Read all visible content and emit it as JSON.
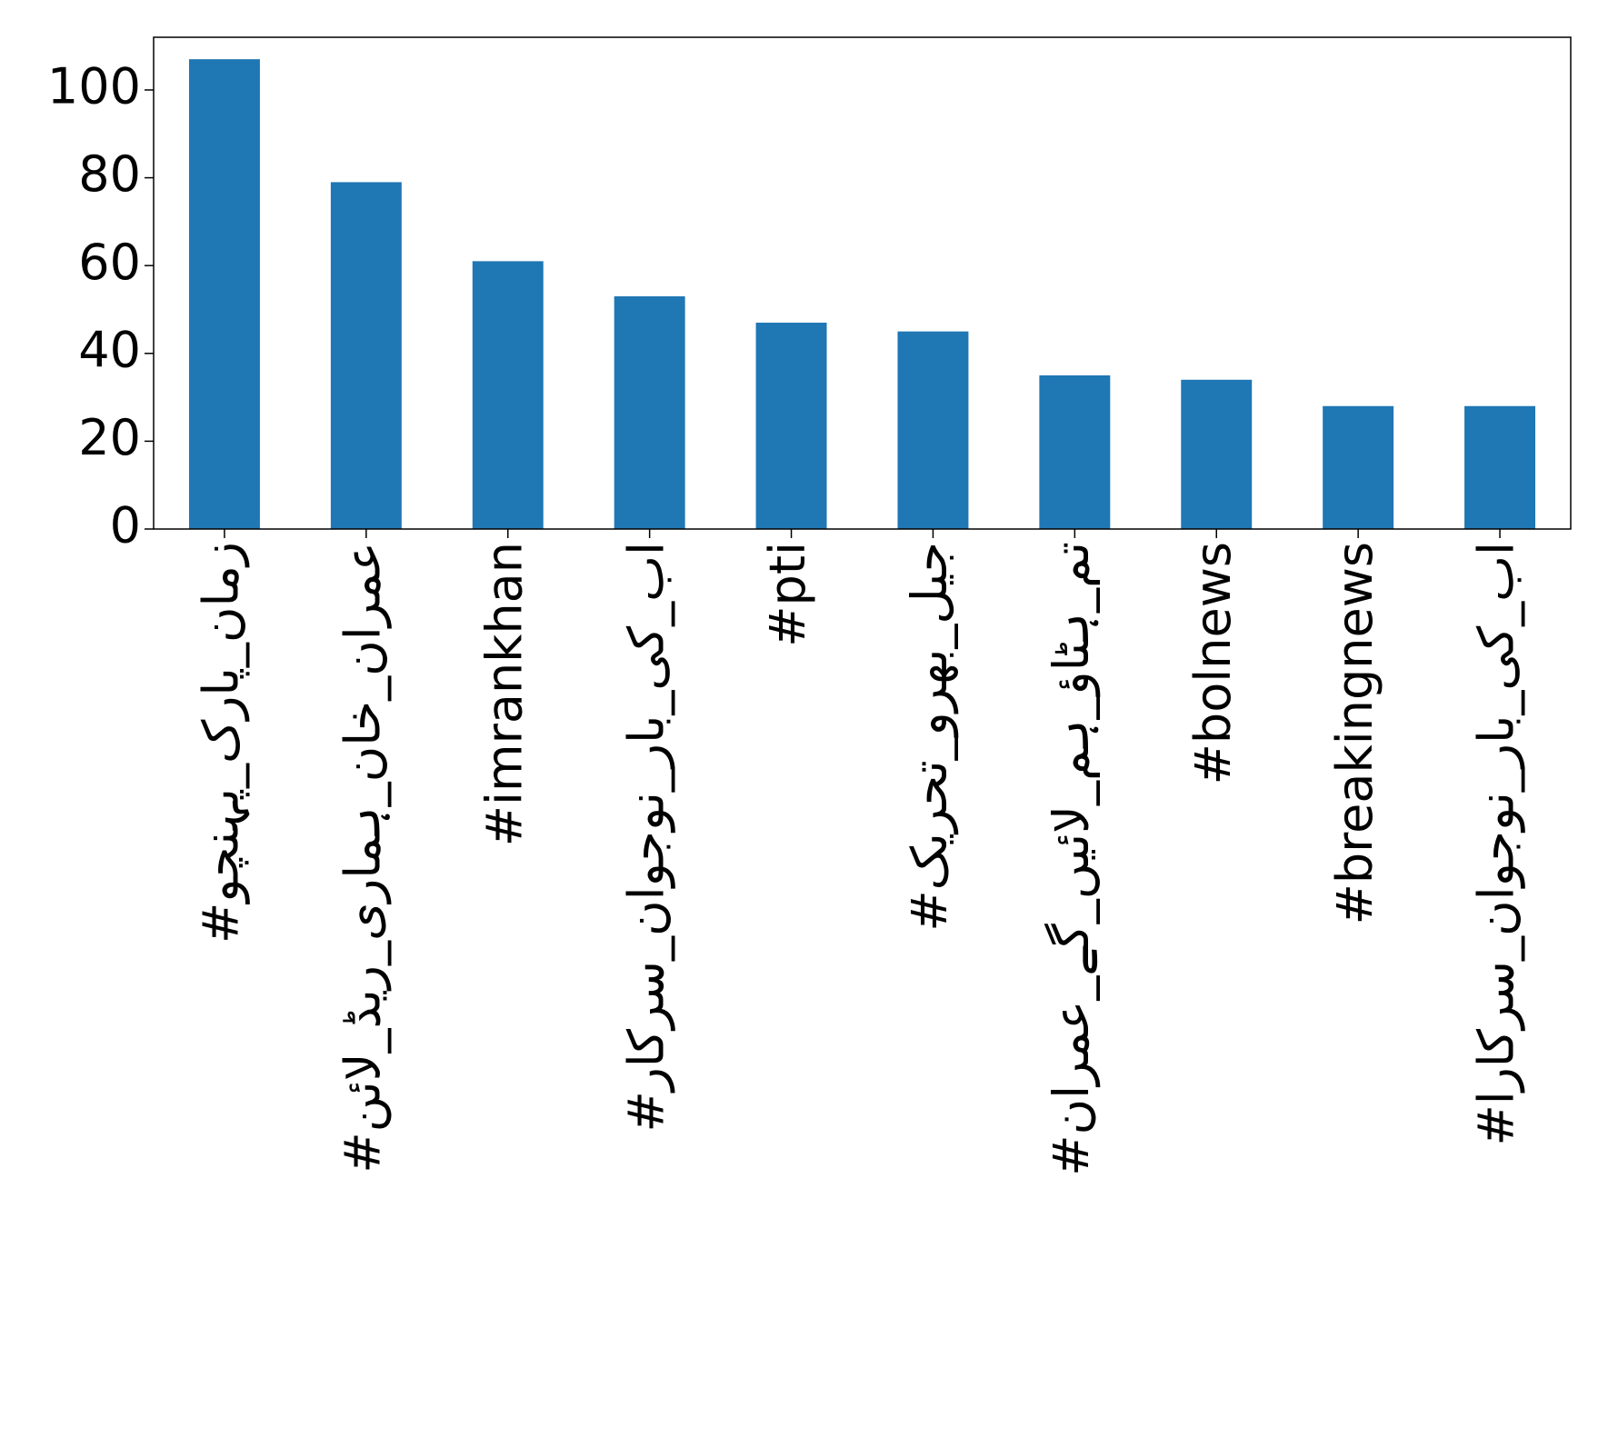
{
  "chart_data": {
    "type": "bar",
    "categories": [
      "#زمان_پارک_پہنچو",
      "#عمران_خان_ہماری_ریڈ_لائن",
      "#imrankhan",
      "#اب_کی_بار_نوجوان_سرکار",
      "#pti",
      "#جیل_بھرو_تحریک",
      "#تم_ہٹاؤ_ہم_لائیں_گے_عمران",
      "#bolnews",
      "#breakingnews",
      "#اب_کی_بار_نوجوان_سرکارا"
    ],
    "values": [
      107,
      79,
      61,
      53,
      47,
      45,
      35,
      34,
      28,
      28
    ],
    "color": "#1f77b4",
    "ylim": [
      0,
      112
    ],
    "yticks": [
      0,
      20,
      40,
      60,
      80,
      100
    ],
    "grid": false
  }
}
